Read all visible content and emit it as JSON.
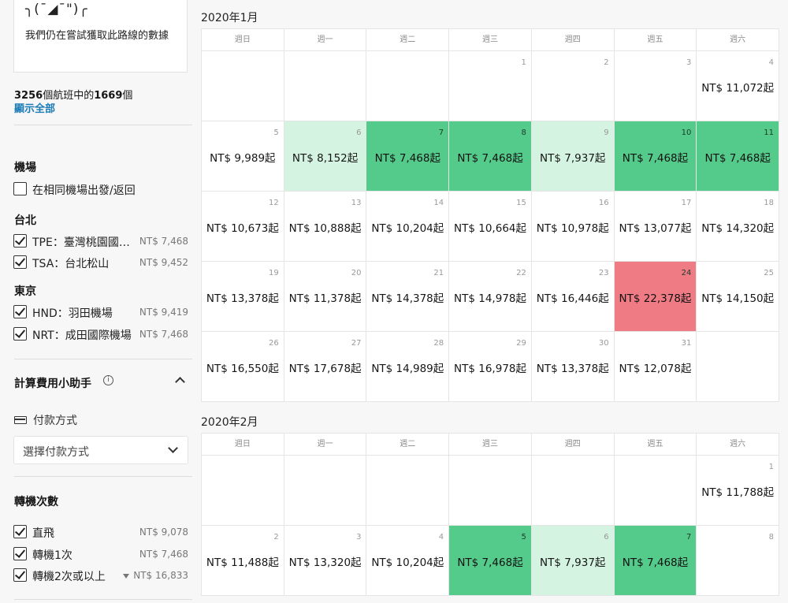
{
  "sidebar": {
    "emoji": "╮(¯◢¯\")╭",
    "emoji_message": "我們仍在嘗試獲取此路線的數據",
    "count": {
      "total": "3256",
      "middle": "個航班中的",
      "shown": "1669",
      "suffix": "個"
    },
    "show_all": "顯示全部",
    "airports": {
      "title": "機場",
      "same_airport": "在相同機場出發/返回",
      "groups": [
        {
          "name": "台北",
          "items": [
            {
              "label": "TPE：臺灣桃園國際機場",
              "price": "NT$ 7,468",
              "checked": true
            },
            {
              "label": "TSA：台北松山",
              "price": "NT$ 9,452",
              "checked": true
            }
          ]
        },
        {
          "name": "東京",
          "items": [
            {
              "label": "HND：羽田機場",
              "price": "NT$ 9,419",
              "checked": true
            },
            {
              "label": "NRT：成田國際機場",
              "price": "NT$ 7,468",
              "checked": true
            }
          ]
        }
      ]
    },
    "helper": {
      "title": "計算費用小助手",
      "info_glyph": "i"
    },
    "payment": {
      "label": "付款方式",
      "placeholder": "選擇付款方式"
    },
    "stops": {
      "title": "轉機次數",
      "items": [
        {
          "label": "直飛",
          "price": "NT$ 9,078",
          "checked": true
        },
        {
          "label": "轉機1次",
          "price": "NT$ 7,468",
          "checked": true
        },
        {
          "label": "轉機2次或以上",
          "price": "NT$ 16,833",
          "checked": true
        }
      ]
    }
  },
  "weekdays": [
    "週日",
    "週一",
    "週二",
    "週三",
    "週四",
    "週五",
    "週六"
  ],
  "colors": {
    "cheapest": "#55cb8b",
    "cheap": "#d4f3e1",
    "expensive": "#ef7b85"
  },
  "months": [
    {
      "title": "2020年1月",
      "weeks": [
        [
          null,
          null,
          null,
          {
            "day": "1",
            "price": "",
            "level": "none"
          },
          {
            "day": "2",
            "price": "",
            "level": "none"
          },
          {
            "day": "3",
            "price": "",
            "level": "none"
          },
          {
            "day": "4",
            "price": "NT$ 11,072起",
            "level": "none"
          }
        ],
        [
          {
            "day": "5",
            "price": "NT$ 9,989起",
            "level": "none"
          },
          {
            "day": "6",
            "price": "NT$ 8,152起",
            "level": "light"
          },
          {
            "day": "7",
            "price": "NT$ 7,468起",
            "level": "green"
          },
          {
            "day": "8",
            "price": "NT$ 7,468起",
            "level": "green"
          },
          {
            "day": "9",
            "price": "NT$ 7,937起",
            "level": "light"
          },
          {
            "day": "10",
            "price": "NT$ 7,468起",
            "level": "green"
          },
          {
            "day": "11",
            "price": "NT$ 7,468起",
            "level": "green"
          }
        ],
        [
          {
            "day": "12",
            "price": "NT$ 10,673起",
            "level": "none"
          },
          {
            "day": "13",
            "price": "NT$ 10,888起",
            "level": "none"
          },
          {
            "day": "14",
            "price": "NT$ 10,204起",
            "level": "none"
          },
          {
            "day": "15",
            "price": "NT$ 10,664起",
            "level": "none"
          },
          {
            "day": "16",
            "price": "NT$ 10,978起",
            "level": "none"
          },
          {
            "day": "17",
            "price": "NT$ 13,077起",
            "level": "none"
          },
          {
            "day": "18",
            "price": "NT$ 14,320起",
            "level": "none"
          }
        ],
        [
          {
            "day": "19",
            "price": "NT$ 13,378起",
            "level": "none"
          },
          {
            "day": "20",
            "price": "NT$ 11,378起",
            "level": "none"
          },
          {
            "day": "21",
            "price": "NT$ 14,378起",
            "level": "none"
          },
          {
            "day": "22",
            "price": "NT$ 14,978起",
            "level": "none"
          },
          {
            "day": "23",
            "price": "NT$ 16,446起",
            "level": "none"
          },
          {
            "day": "24",
            "price": "NT$ 22,378起",
            "level": "red"
          },
          {
            "day": "25",
            "price": "NT$ 14,150起",
            "level": "none"
          }
        ],
        [
          {
            "day": "26",
            "price": "NT$ 16,550起",
            "level": "none"
          },
          {
            "day": "27",
            "price": "NT$ 17,678起",
            "level": "none"
          },
          {
            "day": "28",
            "price": "NT$ 14,989起",
            "level": "none"
          },
          {
            "day": "29",
            "price": "NT$ 16,978起",
            "level": "none"
          },
          {
            "day": "30",
            "price": "NT$ 13,378起",
            "level": "none"
          },
          {
            "day": "31",
            "price": "NT$ 12,078起",
            "level": "none"
          },
          null
        ]
      ]
    },
    {
      "title": "2020年2月",
      "weeks": [
        [
          null,
          null,
          null,
          null,
          null,
          null,
          {
            "day": "1",
            "price": "NT$ 11,788起",
            "level": "none"
          }
        ],
        [
          {
            "day": "2",
            "price": "NT$ 11,488起",
            "level": "none"
          },
          {
            "day": "3",
            "price": "NT$ 13,320起",
            "level": "none"
          },
          {
            "day": "4",
            "price": "NT$ 10,204起",
            "level": "none"
          },
          {
            "day": "5",
            "price": "NT$ 7,468起",
            "level": "green"
          },
          {
            "day": "6",
            "price": "NT$ 7,937起",
            "level": "light"
          },
          {
            "day": "7",
            "price": "NT$ 7,468起",
            "level": "green"
          },
          {
            "day": "8",
            "price": "",
            "level": "none"
          }
        ]
      ]
    }
  ]
}
